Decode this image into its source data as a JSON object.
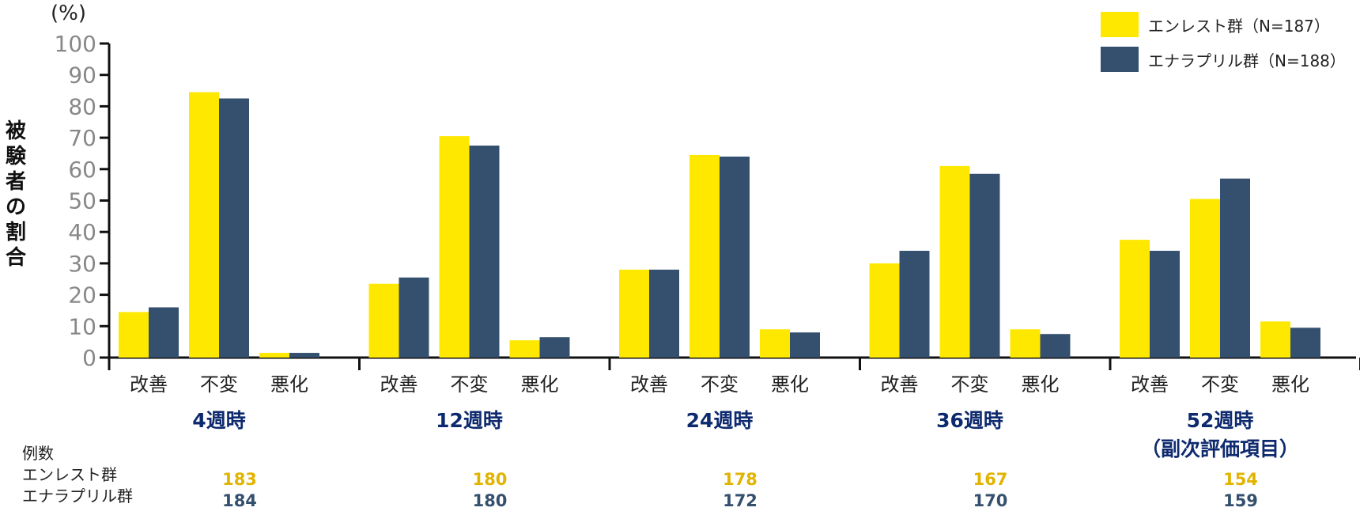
{
  "y_unit": "(%)",
  "ylabel_chars": [
    "被",
    "験",
    "者",
    "の",
    "割",
    "合"
  ],
  "colors": {
    "enlest": "#FFE800",
    "enalapril": "#34506E",
    "group_label": "#0E2A6E",
    "count_enlest": "#E0B400",
    "count_enalapril": "#34506E"
  },
  "legend": [
    {
      "label": "エンレスト群（N=187）",
      "color_key": "enlest"
    },
    {
      "label": "エナラプリル群（N=188）",
      "color_key": "enalapril"
    }
  ],
  "counts_header": "例数",
  "counts_rows": [
    "エンレスト群",
    "エナラプリル群"
  ],
  "chart_data": {
    "type": "bar",
    "ylim": [
      0,
      100
    ],
    "yticks": [
      0,
      10,
      20,
      30,
      40,
      50,
      60,
      70,
      80,
      90,
      100
    ],
    "subcategories": [
      "改善",
      "不変",
      "悪化"
    ],
    "groups": [
      {
        "label": "4週時",
        "sublabel": "",
        "enlest": [
          14.5,
          84.5,
          1.5
        ],
        "enalapril": [
          16,
          82.5,
          1.5
        ],
        "n_enlest": "183",
        "n_enalapril": "184"
      },
      {
        "label": "12週時",
        "sublabel": "",
        "enlest": [
          23.5,
          70.5,
          5.5
        ],
        "enalapril": [
          25.5,
          67.5,
          6.5
        ],
        "n_enlest": "180",
        "n_enalapril": "180"
      },
      {
        "label": "24週時",
        "sublabel": "",
        "enlest": [
          28,
          64.5,
          9
        ],
        "enalapril": [
          28,
          64,
          8
        ],
        "n_enlest": "178",
        "n_enalapril": "172"
      },
      {
        "label": "36週時",
        "sublabel": "",
        "enlest": [
          30,
          61,
          9
        ],
        "enalapril": [
          34,
          58.5,
          7.5
        ],
        "n_enlest": "167",
        "n_enalapril": "170"
      },
      {
        "label": "52週時",
        "sublabel": "（副次評価項目）",
        "enlest": [
          37.5,
          50.5,
          11.5
        ],
        "enalapril": [
          34,
          57,
          9.5
        ],
        "n_enlest": "154",
        "n_enalapril": "159"
      }
    ],
    "series": [
      {
        "name": "エンレスト群（N=187）",
        "key": "enlest"
      },
      {
        "name": "エナラプリル群（N=188）",
        "key": "enalapril"
      }
    ]
  }
}
